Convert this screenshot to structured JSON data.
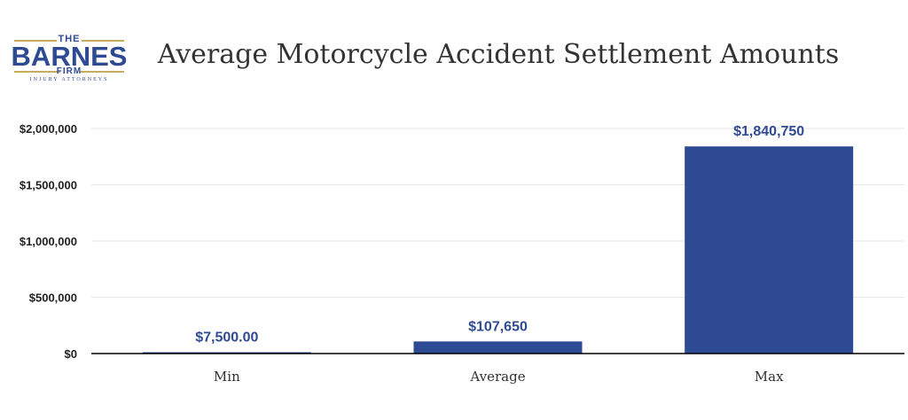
{
  "logo": {
    "top": "THE",
    "brand": "BARNES",
    "firm": "FIRM",
    "subtitle": "INJURY ATTORNEYS"
  },
  "colors": {
    "bar": "#2e4a93",
    "grid": "#e6e6e6",
    "axis": "#000000"
  },
  "chart_data": {
    "type": "bar",
    "title": "Average Motorcycle Accident Settlement Amounts",
    "xlabel": "",
    "ylabel": "",
    "categories": [
      "Min",
      "Average",
      "Max"
    ],
    "values": [
      7500,
      107650,
      1840750
    ],
    "data_labels": [
      "$7,500.00",
      "$107,650",
      "$1,840,750"
    ],
    "ylim": [
      0,
      2000000
    ],
    "y_ticks": [
      0,
      500000,
      1000000,
      1500000,
      2000000
    ],
    "y_tick_labels": [
      "$0",
      "$500,000",
      "$1,000,000",
      "$1,500,000",
      "$2,000,000"
    ],
    "grid": true,
    "legend": "none"
  }
}
